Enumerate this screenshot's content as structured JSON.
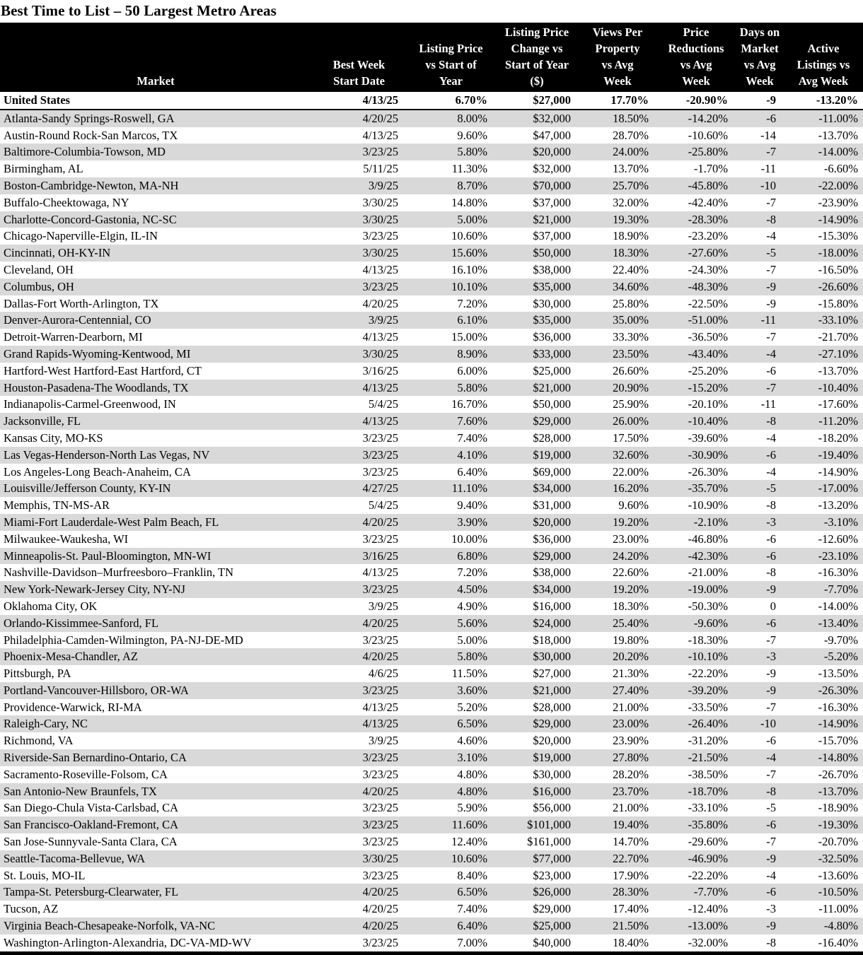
{
  "title": "Best Time to List – 50 Largest Metro Areas",
  "colors": {
    "header_bg": "#000000",
    "header_text": "#ffffff",
    "stripe": "#d9d9d9",
    "text": "#000000"
  },
  "chart_data": {
    "type": "table",
    "title": "Best Time to List – 50 Largest Metro Areas",
    "columns": [
      {
        "id": "market",
        "label": "Market"
      },
      {
        "id": "best_week_start_date",
        "label": "Best Week\nStart Date"
      },
      {
        "id": "listing_price_vs_start_of_year",
        "label": "Listing Price\nvs Start of\nYear"
      },
      {
        "id": "listing_price_change_vs_start_of_year",
        "label": "Listing Price\nChange vs\nStart of Year\n($)"
      },
      {
        "id": "views_per_property_vs_avg_week",
        "label": "Views Per\nProperty\nvs Avg\nWeek"
      },
      {
        "id": "price_reductions_vs_avg_week",
        "label": "Price\nReductions\nvs Avg\nWeek"
      },
      {
        "id": "days_on_market_vs_avg_week",
        "label": "Days on\nMarket\nvs Avg\nWeek"
      },
      {
        "id": "active_listings_vs_avg_week",
        "label": "Active\nListings vs\nAvg Week"
      }
    ],
    "us_row": {
      "market": "United States",
      "values": [
        "4/13/25",
        "6.70%",
        "$27,000",
        "17.70%",
        "-20.90%",
        "-9",
        "-13.20%"
      ]
    },
    "rows": [
      {
        "market": "Atlanta-Sandy Springs-Roswell, GA",
        "values": [
          "4/20/25",
          "8.00%",
          "$32,000",
          "18.50%",
          "-14.20%",
          "-6",
          "-11.00%"
        ]
      },
      {
        "market": "Austin-Round Rock-San Marcos, TX",
        "values": [
          "4/13/25",
          "9.60%",
          "$47,000",
          "28.70%",
          "-10.60%",
          "-14",
          "-13.70%"
        ]
      },
      {
        "market": "Baltimore-Columbia-Towson, MD",
        "values": [
          "3/23/25",
          "5.80%",
          "$20,000",
          "24.00%",
          "-25.80%",
          "-7",
          "-14.00%"
        ]
      },
      {
        "market": "Birmingham, AL",
        "values": [
          "5/11/25",
          "11.30%",
          "$32,000",
          "13.70%",
          "-1.70%",
          "-11",
          "-6.60%"
        ]
      },
      {
        "market": "Boston-Cambridge-Newton, MA-NH",
        "values": [
          "3/9/25",
          "8.70%",
          "$70,000",
          "25.70%",
          "-45.80%",
          "-10",
          "-22.00%"
        ]
      },
      {
        "market": "Buffalo-Cheektowaga, NY",
        "values": [
          "3/30/25",
          "14.80%",
          "$37,000",
          "32.00%",
          "-42.40%",
          "-7",
          "-23.90%"
        ]
      },
      {
        "market": "Charlotte-Concord-Gastonia, NC-SC",
        "values": [
          "3/30/25",
          "5.00%",
          "$21,000",
          "19.30%",
          "-28.30%",
          "-8",
          "-14.90%"
        ]
      },
      {
        "market": "Chicago-Naperville-Elgin, IL-IN",
        "values": [
          "3/23/25",
          "10.60%",
          "$37,000",
          "18.90%",
          "-23.20%",
          "-4",
          "-15.30%"
        ]
      },
      {
        "market": "Cincinnati, OH-KY-IN",
        "values": [
          "3/30/25",
          "15.60%",
          "$50,000",
          "18.30%",
          "-27.60%",
          "-5",
          "-18.00%"
        ]
      },
      {
        "market": "Cleveland, OH",
        "values": [
          "4/13/25",
          "16.10%",
          "$38,000",
          "22.40%",
          "-24.30%",
          "-7",
          "-16.50%"
        ]
      },
      {
        "market": "Columbus, OH",
        "values": [
          "3/23/25",
          "10.10%",
          "$35,000",
          "34.60%",
          "-48.30%",
          "-9",
          "-26.60%"
        ]
      },
      {
        "market": "Dallas-Fort Worth-Arlington, TX",
        "values": [
          "4/20/25",
          "7.20%",
          "$30,000",
          "25.80%",
          "-22.50%",
          "-9",
          "-15.80%"
        ]
      },
      {
        "market": "Denver-Aurora-Centennial, CO",
        "values": [
          "3/9/25",
          "6.10%",
          "$35,000",
          "35.00%",
          "-51.00%",
          "-11",
          "-33.10%"
        ]
      },
      {
        "market": "Detroit-Warren-Dearborn, MI",
        "values": [
          "4/13/25",
          "15.00%",
          "$36,000",
          "33.30%",
          "-36.50%",
          "-7",
          "-21.70%"
        ]
      },
      {
        "market": "Grand Rapids-Wyoming-Kentwood, MI",
        "values": [
          "3/30/25",
          "8.90%",
          "$33,000",
          "23.50%",
          "-43.40%",
          "-4",
          "-27.10%"
        ]
      },
      {
        "market": "Hartford-West Hartford-East Hartford, CT",
        "values": [
          "3/16/25",
          "6.00%",
          "$25,000",
          "26.60%",
          "-25.20%",
          "-6",
          "-13.70%"
        ]
      },
      {
        "market": "Houston-Pasadena-The Woodlands, TX",
        "values": [
          "4/13/25",
          "5.80%",
          "$21,000",
          "20.90%",
          "-15.20%",
          "-7",
          "-10.40%"
        ]
      },
      {
        "market": "Indianapolis-Carmel-Greenwood, IN",
        "values": [
          "5/4/25",
          "16.70%",
          "$50,000",
          "25.90%",
          "-20.10%",
          "-11",
          "-17.60%"
        ]
      },
      {
        "market": "Jacksonville, FL",
        "values": [
          "4/13/25",
          "7.60%",
          "$29,000",
          "26.00%",
          "-10.40%",
          "-8",
          "-11.20%"
        ]
      },
      {
        "market": "Kansas City, MO-KS",
        "values": [
          "3/23/25",
          "7.40%",
          "$28,000",
          "17.50%",
          "-39.60%",
          "-4",
          "-18.20%"
        ]
      },
      {
        "market": "Las Vegas-Henderson-North Las Vegas, NV",
        "values": [
          "3/23/25",
          "4.10%",
          "$19,000",
          "32.60%",
          "-30.90%",
          "-6",
          "-19.40%"
        ]
      },
      {
        "market": "Los Angeles-Long Beach-Anaheim, CA",
        "values": [
          "3/23/25",
          "6.40%",
          "$69,000",
          "22.00%",
          "-26.30%",
          "-4",
          "-14.90%"
        ]
      },
      {
        "market": "Louisville/Jefferson County, KY-IN",
        "values": [
          "4/27/25",
          "11.10%",
          "$34,000",
          "16.20%",
          "-35.70%",
          "-5",
          "-17.00%"
        ]
      },
      {
        "market": "Memphis, TN-MS-AR",
        "values": [
          "5/4/25",
          "9.40%",
          "$31,000",
          "9.60%",
          "-10.90%",
          "-8",
          "-13.20%"
        ]
      },
      {
        "market": "Miami-Fort Lauderdale-West Palm Beach, FL",
        "values": [
          "4/20/25",
          "3.90%",
          "$20,000",
          "19.20%",
          "-2.10%",
          "-3",
          "-3.10%"
        ]
      },
      {
        "market": "Milwaukee-Waukesha, WI",
        "values": [
          "3/23/25",
          "10.00%",
          "$36,000",
          "23.00%",
          "-46.80%",
          "-6",
          "-12.60%"
        ]
      },
      {
        "market": "Minneapolis-St. Paul-Bloomington, MN-WI",
        "values": [
          "3/16/25",
          "6.80%",
          "$29,000",
          "24.20%",
          "-42.30%",
          "-6",
          "-23.10%"
        ]
      },
      {
        "market": "Nashville-Davidson–Murfreesboro–Franklin, TN",
        "values": [
          "4/13/25",
          "7.20%",
          "$38,000",
          "22.60%",
          "-21.00%",
          "-8",
          "-16.30%"
        ]
      },
      {
        "market": "New York-Newark-Jersey City, NY-NJ",
        "values": [
          "3/23/25",
          "4.50%",
          "$34,000",
          "19.20%",
          "-19.00%",
          "-9",
          "-7.70%"
        ]
      },
      {
        "market": "Oklahoma City, OK",
        "values": [
          "3/9/25",
          "4.90%",
          "$16,000",
          "18.30%",
          "-50.30%",
          "0",
          "-14.00%"
        ]
      },
      {
        "market": "Orlando-Kissimmee-Sanford, FL",
        "values": [
          "4/20/25",
          "5.60%",
          "$24,000",
          "25.40%",
          "-9.60%",
          "-6",
          "-13.40%"
        ]
      },
      {
        "market": "Philadelphia-Camden-Wilmington, PA-NJ-DE-MD",
        "values": [
          "3/23/25",
          "5.00%",
          "$18,000",
          "19.80%",
          "-18.30%",
          "-7",
          "-9.70%"
        ]
      },
      {
        "market": "Phoenix-Mesa-Chandler, AZ",
        "values": [
          "4/20/25",
          "5.80%",
          "$30,000",
          "20.20%",
          "-10.10%",
          "-3",
          "-5.20%"
        ]
      },
      {
        "market": "Pittsburgh, PA",
        "values": [
          "4/6/25",
          "11.50%",
          "$27,000",
          "21.30%",
          "-22.20%",
          "-9",
          "-13.50%"
        ]
      },
      {
        "market": "Portland-Vancouver-Hillsboro, OR-WA",
        "values": [
          "3/23/25",
          "3.60%",
          "$21,000",
          "27.40%",
          "-39.20%",
          "-9",
          "-26.30%"
        ]
      },
      {
        "market": "Providence-Warwick, RI-MA",
        "values": [
          "4/13/25",
          "5.20%",
          "$28,000",
          "21.00%",
          "-33.50%",
          "-7",
          "-16.30%"
        ]
      },
      {
        "market": "Raleigh-Cary, NC",
        "values": [
          "4/13/25",
          "6.50%",
          "$29,000",
          "23.00%",
          "-26.40%",
          "-10",
          "-14.90%"
        ]
      },
      {
        "market": "Richmond, VA",
        "values": [
          "3/9/25",
          "4.60%",
          "$20,000",
          "23.90%",
          "-31.20%",
          "-6",
          "-15.70%"
        ]
      },
      {
        "market": "Riverside-San Bernardino-Ontario, CA",
        "values": [
          "3/23/25",
          "3.10%",
          "$19,000",
          "27.80%",
          "-21.50%",
          "-4",
          "-14.80%"
        ]
      },
      {
        "market": "Sacramento-Roseville-Folsom, CA",
        "values": [
          "3/23/25",
          "4.80%",
          "$30,000",
          "28.20%",
          "-38.50%",
          "-7",
          "-26.70%"
        ]
      },
      {
        "market": "San Antonio-New Braunfels, TX",
        "values": [
          "4/20/25",
          "4.80%",
          "$16,000",
          "23.70%",
          "-18.70%",
          "-8",
          "-13.70%"
        ]
      },
      {
        "market": "San Diego-Chula Vista-Carlsbad, CA",
        "values": [
          "3/23/25",
          "5.90%",
          "$56,000",
          "21.00%",
          "-33.10%",
          "-5",
          "-18.90%"
        ]
      },
      {
        "market": "San Francisco-Oakland-Fremont, CA",
        "values": [
          "3/23/25",
          "11.60%",
          "$101,000",
          "19.40%",
          "-35.80%",
          "-6",
          "-19.30%"
        ]
      },
      {
        "market": "San Jose-Sunnyvale-Santa Clara, CA",
        "values": [
          "3/23/25",
          "12.40%",
          "$161,000",
          "14.70%",
          "-29.60%",
          "-7",
          "-20.70%"
        ]
      },
      {
        "market": "Seattle-Tacoma-Bellevue, WA",
        "values": [
          "3/30/25",
          "10.60%",
          "$77,000",
          "22.70%",
          "-46.90%",
          "-9",
          "-32.50%"
        ]
      },
      {
        "market": "St. Louis, MO-IL",
        "values": [
          "3/23/25",
          "8.40%",
          "$23,000",
          "17.90%",
          "-22.20%",
          "-4",
          "-13.60%"
        ]
      },
      {
        "market": "Tampa-St. Petersburg-Clearwater, FL",
        "values": [
          "4/20/25",
          "6.50%",
          "$26,000",
          "28.30%",
          "-7.70%",
          "-6",
          "-10.50%"
        ]
      },
      {
        "market": "Tucson, AZ",
        "values": [
          "4/20/25",
          "7.40%",
          "$29,000",
          "17.40%",
          "-12.40%",
          "-3",
          "-11.00%"
        ]
      },
      {
        "market": "Virginia Beach-Chesapeake-Norfolk, VA-NC",
        "values": [
          "4/20/25",
          "6.40%",
          "$25,000",
          "21.50%",
          "-13.00%",
          "-9",
          "-4.80%"
        ]
      },
      {
        "market": "Washington-Arlington-Alexandria, DC-VA-MD-WV",
        "values": [
          "3/23/25",
          "7.00%",
          "$40,000",
          "18.40%",
          "-32.00%",
          "-8",
          "-16.40%"
        ]
      }
    ]
  }
}
